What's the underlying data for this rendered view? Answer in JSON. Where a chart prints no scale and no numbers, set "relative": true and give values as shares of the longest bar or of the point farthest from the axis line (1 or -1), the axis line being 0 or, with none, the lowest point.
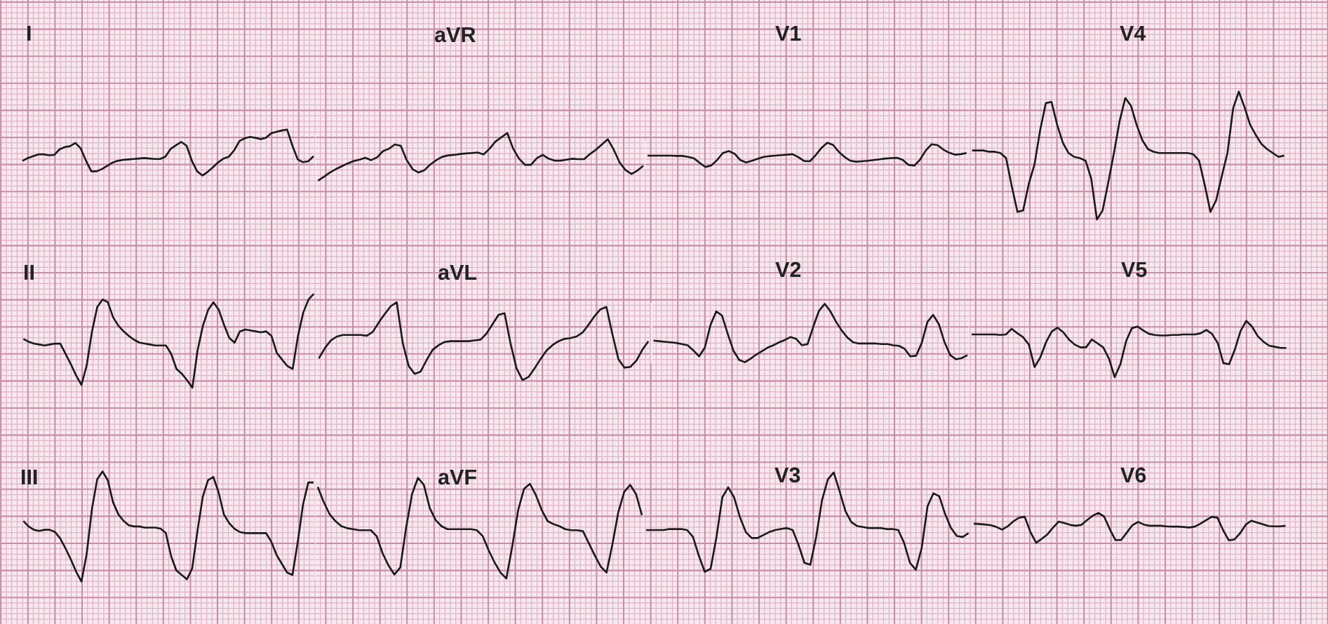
{
  "chart_data": [
    {
      "type": "line",
      "title": "I",
      "relative": true,
      "grid": true,
      "color": "#1a1a1a",
      "categories": [
        null,
        null,
        null,
        null,
        null,
        null,
        null,
        null,
        null,
        null,
        null,
        null,
        null,
        null,
        null,
        null,
        null,
        null,
        null,
        null,
        null,
        null,
        null,
        null,
        null,
        null,
        null,
        null,
        null,
        null,
        null,
        null,
        null,
        null,
        null,
        null,
        null,
        null,
        null,
        null,
        null,
        null,
        null,
        null,
        null,
        null,
        null,
        null,
        null,
        null,
        null,
        null,
        null,
        null,
        null,
        null
      ],
      "values": [
        0.32,
        0.38,
        0.42,
        0.46,
        0.46,
        0.44,
        0.45,
        0.57,
        0.62,
        0.64,
        0.71,
        0.59,
        0.32,
        0.09,
        0.09,
        0.14,
        0.21,
        0.28,
        0.32,
        0.34,
        0.35,
        0.36,
        0.37,
        0.38,
        0.37,
        0.36,
        0.36,
        0.41,
        0.58,
        0.66,
        0.73,
        0.65,
        0.32,
        0.09,
        0,
        0.08,
        0.18,
        0.29,
        0.37,
        0.41,
        0.55,
        0.75,
        0.81,
        0.84,
        0.82,
        0.79,
        0.82,
        0.92,
        0.95,
        0.98,
        1,
        0.65,
        0.35,
        0.29,
        0.31,
        0.42
      ]
    },
    {
      "type": "line",
      "title": "aVR",
      "relative": true,
      "grid": true,
      "color": "#1a1a1a",
      "categories": [
        null,
        null,
        null,
        null,
        null,
        null,
        null,
        null,
        null,
        null,
        null,
        null,
        null,
        null,
        null,
        null,
        null,
        null,
        null,
        null,
        null,
        null,
        null,
        null,
        null,
        null,
        null,
        null,
        null,
        null,
        null,
        null,
        null,
        null,
        null,
        null,
        null,
        null,
        null,
        null,
        null,
        null,
        null,
        null,
        null,
        null,
        null,
        null,
        null,
        null,
        null,
        null,
        null,
        null,
        null,
        null
      ],
      "values": [
        0,
        0.08,
        0.17,
        0.24,
        0.3,
        0.36,
        0.41,
        0.44,
        0.48,
        0.43,
        0.49,
        0.62,
        0.67,
        0.76,
        0.73,
        0.43,
        0.24,
        0.17,
        0.22,
        0.34,
        0.43,
        0.5,
        0.53,
        0.54,
        0.56,
        0.57,
        0.58,
        0.59,
        0.55,
        0.67,
        0.82,
        0.91,
        1,
        0.67,
        0.46,
        0.33,
        0.33,
        0.47,
        0.54,
        0.46,
        0.42,
        0.42,
        0.44,
        0.46,
        0.45,
        0.45,
        0.56,
        0.65,
        0.76,
        0.87,
        0.65,
        0.38,
        0.22,
        0.14,
        0.21,
        0.31
      ]
    },
    {
      "type": "line",
      "title": "V1",
      "relative": true,
      "grid": true,
      "color": "#1a1a1a",
      "categories": [
        null,
        null,
        null,
        null,
        null,
        null,
        null,
        null,
        null,
        null,
        null,
        null,
        null,
        null,
        null,
        null,
        null,
        null,
        null,
        null,
        null,
        null,
        null,
        null,
        null,
        null,
        null,
        null,
        null,
        null,
        null,
        null,
        null,
        null,
        null,
        null,
        null,
        null,
        null,
        null,
        null,
        null,
        null,
        null,
        null,
        null,
        null,
        null,
        null,
        null,
        null,
        null,
        null,
        null,
        null,
        null
      ],
      "values": [
        0.47,
        0.47,
        0.47,
        0.47,
        0.47,
        0.46,
        0.46,
        0.42,
        0.36,
        0.17,
        0,
        0.07,
        0.29,
        0.58,
        0.66,
        0.55,
        0.29,
        0.19,
        0.26,
        0.34,
        0.42,
        0.45,
        0.47,
        0.49,
        0.51,
        0.53,
        0.41,
        0.25,
        0.24,
        0.49,
        0.79,
        1,
        0.91,
        0.62,
        0.41,
        0.26,
        0.22,
        0.24,
        0.26,
        0.29,
        0.32,
        0.35,
        0.37,
        0.38,
        0.3,
        0.09,
        0.06,
        0.31,
        0.69,
        0.94,
        0.9,
        0.72,
        0.59,
        0.51,
        0.53,
        0.58
      ]
    },
    {
      "type": "line",
      "title": "V4",
      "relative": true,
      "grid": true,
      "color": "#1a1a1a",
      "categories": [
        null,
        null,
        null,
        null,
        null,
        null,
        null,
        null,
        null,
        null,
        null,
        null,
        null,
        null,
        null,
        null,
        null,
        null,
        null,
        null,
        null,
        null,
        null,
        null,
        null,
        null,
        null,
        null,
        null,
        null,
        null,
        null,
        null,
        null,
        null,
        null,
        null,
        null,
        null,
        null,
        null,
        null,
        null,
        null,
        null,
        null,
        null,
        null,
        null,
        null,
        null,
        null,
        null,
        null,
        null,
        null
      ],
      "values": [
        0.54,
        0.54,
        0.54,
        0.53,
        0.53,
        0.52,
        0.48,
        0.26,
        0.06,
        0.07,
        0.28,
        0.43,
        0.7,
        0.91,
        0.92,
        0.74,
        0.6,
        0.52,
        0.49,
        0.48,
        0.46,
        0.32,
        0,
        0.07,
        0.29,
        0.52,
        0.77,
        0.95,
        0.89,
        0.74,
        0.62,
        0.55,
        0.53,
        0.52,
        0.52,
        0.52,
        0.52,
        0.52,
        0.52,
        0.51,
        0.46,
        0.27,
        0.06,
        0.15,
        0.34,
        0.52,
        0.87,
        1,
        0.88,
        0.74,
        0.66,
        0.59,
        0.55,
        0.52,
        0.49,
        0.5
      ]
    },
    {
      "type": "line",
      "title": "II",
      "relative": true,
      "grid": true,
      "color": "#1a1a1a",
      "categories": [
        null,
        null,
        null,
        null,
        null,
        null,
        null,
        null,
        null,
        null,
        null,
        null,
        null,
        null,
        null,
        null,
        null,
        null,
        null,
        null,
        null,
        null,
        null,
        null,
        null,
        null,
        null,
        null,
        null,
        null,
        null,
        null,
        null,
        null,
        null,
        null,
        null,
        null,
        null,
        null,
        null,
        null,
        null,
        null,
        null,
        null,
        null,
        null,
        null,
        null,
        null,
        null,
        null,
        null,
        null,
        null
      ],
      "values": [
        0.52,
        0.49,
        0.47,
        0.46,
        0.45,
        0.46,
        0.47,
        0.47,
        0.36,
        0.25,
        0.13,
        0.03,
        0.24,
        0.6,
        0.86,
        0.94,
        0.91,
        0.75,
        0.66,
        0.6,
        0.55,
        0.51,
        0.48,
        0.47,
        0.46,
        0.45,
        0.45,
        0.45,
        0.36,
        0.2,
        0.15,
        0.08,
        0,
        0.4,
        0.66,
        0.83,
        0.91,
        0.83,
        0.67,
        0.53,
        0.48,
        0.6,
        0.62,
        0.61,
        0.6,
        0.59,
        0.6,
        0.55,
        0.37,
        0.3,
        0.23,
        0.2,
        0.55,
        0.8,
        0.94,
        1
      ]
    },
    {
      "type": "line",
      "title": "aVL",
      "relative": true,
      "grid": true,
      "color": "#1a1a1a",
      "categories": [
        null,
        null,
        null,
        null,
        null,
        null,
        null,
        null,
        null,
        null,
        null,
        null,
        null,
        null,
        null,
        null,
        null,
        null,
        null,
        null,
        null,
        null,
        null,
        null,
        null,
        null,
        null,
        null,
        null,
        null,
        null,
        null,
        null,
        null,
        null,
        null,
        null,
        null,
        null,
        null,
        null,
        null,
        null,
        null,
        null,
        null,
        null,
        null,
        null,
        null,
        null,
        null,
        null,
        null,
        null,
        null
      ],
      "values": [
        0.28,
        0.41,
        0.51,
        0.56,
        0.58,
        0.58,
        0.58,
        0.58,
        0.57,
        0.62,
        0.74,
        0.85,
        0.95,
        1,
        0.48,
        0.18,
        0.08,
        0.11,
        0.26,
        0.39,
        0.45,
        0.49,
        0.5,
        0.5,
        0.5,
        0.5,
        0.51,
        0.52,
        0.6,
        0.72,
        0.84,
        0.86,
        0.47,
        0.15,
        0,
        0.04,
        0.15,
        0.27,
        0.38,
        0.45,
        0.5,
        0.53,
        0.54,
        0.56,
        0.61,
        0.71,
        0.82,
        0.91,
        0.94,
        0.59,
        0.27,
        0.16,
        0.17,
        0.25,
        0.39,
        0.5
      ]
    },
    {
      "type": "line",
      "title": "V2",
      "relative": true,
      "grid": true,
      "color": "#1a1a1a",
      "categories": [
        null,
        null,
        null,
        null,
        null,
        null,
        null,
        null,
        null,
        null,
        null,
        null,
        null,
        null,
        null,
        null,
        null,
        null,
        null,
        null,
        null,
        null,
        null,
        null,
        null,
        null,
        null,
        null,
        null,
        null,
        null,
        null,
        null,
        null,
        null,
        null,
        null,
        null,
        null,
        null,
        null,
        null,
        null,
        null,
        null,
        null,
        null,
        null,
        null,
        null,
        null,
        null,
        null,
        null,
        null,
        null
      ],
      "values": [
        0.37,
        0.36,
        0.35,
        0.34,
        0.33,
        0.31,
        0.29,
        0.2,
        0.1,
        0.25,
        0.64,
        0.87,
        0.8,
        0.49,
        0.2,
        0.04,
        0,
        0.06,
        0.13,
        0.19,
        0.25,
        0.29,
        0.34,
        0.38,
        0.43,
        0.4,
        0.29,
        0.31,
        0.61,
        0.88,
        1,
        0.87,
        0.69,
        0.54,
        0.42,
        0.34,
        0.32,
        0.32,
        0.32,
        0.32,
        0.31,
        0.31,
        0.29,
        0.28,
        0.23,
        0.1,
        0.11,
        0.33,
        0.69,
        0.81,
        0.65,
        0.34,
        0.12,
        0.05,
        0.07,
        0.12
      ]
    },
    {
      "type": "line",
      "title": "V5",
      "relative": true,
      "grid": true,
      "color": "#1a1a1a",
      "categories": [
        null,
        null,
        null,
        null,
        null,
        null,
        null,
        null,
        null,
        null,
        null,
        null,
        null,
        null,
        null,
        null,
        null,
        null,
        null,
        null,
        null,
        null,
        null,
        null,
        null,
        null,
        null,
        null,
        null,
        null,
        null,
        null,
        null,
        null,
        null,
        null,
        null,
        null,
        null,
        null,
        null,
        null,
        null,
        null,
        null,
        null,
        null,
        null,
        null,
        null,
        null,
        null,
        null,
        null,
        null,
        null
      ],
      "values": [
        0.76,
        0.76,
        0.76,
        0.76,
        0.76,
        0.75,
        0.76,
        0.86,
        0.78,
        0.71,
        0.58,
        0.18,
        0.35,
        0.62,
        0.81,
        0.88,
        0.8,
        0.67,
        0.58,
        0.53,
        0.53,
        0.67,
        0.6,
        0.53,
        0.33,
        0,
        0.23,
        0.64,
        0.87,
        0.9,
        0.83,
        0.77,
        0.75,
        0.74,
        0.74,
        0.75,
        0.75,
        0.76,
        0.76,
        0.76,
        0.78,
        0.84,
        0.77,
        0.61,
        0.25,
        0.23,
        0.49,
        0.82,
        1,
        0.9,
        0.73,
        0.63,
        0.56,
        0.54,
        0.52,
        0.52
      ]
    },
    {
      "type": "line",
      "title": "III",
      "relative": true,
      "grid": true,
      "color": "#1a1a1a",
      "categories": [
        null,
        null,
        null,
        null,
        null,
        null,
        null,
        null,
        null,
        null,
        null,
        null,
        null,
        null,
        null,
        null,
        null,
        null,
        null,
        null,
        null,
        null,
        null,
        null,
        null,
        null,
        null,
        null,
        null,
        null,
        null,
        null,
        null,
        null,
        null,
        null,
        null,
        null,
        null,
        null,
        null,
        null,
        null,
        null,
        null,
        null,
        null,
        null,
        null,
        null,
        null,
        null,
        null,
        null,
        null,
        null
      ],
      "values": [
        0.55,
        0.5,
        0.47,
        0.46,
        0.47,
        0.47,
        0.45,
        0.39,
        0.3,
        0.2,
        0.09,
        0,
        0.25,
        0.66,
        0.93,
        1,
        0.92,
        0.72,
        0.61,
        0.55,
        0.51,
        0.5,
        0.5,
        0.49,
        0.49,
        0.49,
        0.48,
        0.44,
        0.23,
        0.1,
        0.06,
        0.02,
        0.12,
        0.46,
        0.77,
        0.92,
        0.95,
        0.81,
        0.61,
        0.53,
        0.48,
        0.45,
        0.44,
        0.44,
        0.44,
        0.44,
        0.44,
        0.36,
        0.24,
        0.16,
        0.08,
        0.06,
        0.36,
        0.7,
        0.9,
        0.9
      ]
    },
    {
      "type": "line",
      "title": "aVF",
      "relative": true,
      "grid": true,
      "color": "#1a1a1a",
      "categories": [
        null,
        null,
        null,
        null,
        null,
        null,
        null,
        null,
        null,
        null,
        null,
        null,
        null,
        null,
        null,
        null,
        null,
        null,
        null,
        null,
        null,
        null,
        null,
        null,
        null,
        null,
        null,
        null,
        null,
        null,
        null,
        null,
        null,
        null,
        null,
        null,
        null,
        null,
        null,
        null,
        null,
        null,
        null,
        null,
        null,
        null,
        null,
        null,
        null,
        null,
        null,
        null,
        null,
        null,
        null,
        null
      ],
      "values": [
        0.91,
        0.76,
        0.64,
        0.57,
        0.52,
        0.5,
        0.49,
        0.48,
        0.48,
        0.48,
        0.42,
        0.25,
        0.13,
        0.04,
        0.11,
        0.51,
        0.84,
        1,
        0.93,
        0.7,
        0.58,
        0.52,
        0.49,
        0.49,
        0.49,
        0.49,
        0.49,
        0.48,
        0.42,
        0.28,
        0.16,
        0.06,
        0,
        0.32,
        0.68,
        0.89,
        0.94,
        0.83,
        0.68,
        0.57,
        0.54,
        0.52,
        0.49,
        0.48,
        0.48,
        0.47,
        0.35,
        0.23,
        0.12,
        0.06,
        0.34,
        0.66,
        0.86,
        0.93,
        0.84,
        0.63
      ]
    },
    {
      "type": "line",
      "title": "V3",
      "relative": true,
      "grid": true,
      "color": "#1a1a1a",
      "categories": [
        null,
        null,
        null,
        null,
        null,
        null,
        null,
        null,
        null,
        null,
        null,
        null,
        null,
        null,
        null,
        null,
        null,
        null,
        null,
        null,
        null,
        null,
        null,
        null,
        null,
        null,
        null,
        null,
        null,
        null,
        null,
        null,
        null,
        null,
        null,
        null,
        null,
        null,
        null,
        null,
        null,
        null,
        null,
        null,
        null,
        null,
        null,
        null,
        null,
        null,
        null,
        null,
        null,
        null,
        null,
        null
      ],
      "values": [
        0.42,
        0.42,
        0.42,
        0.42,
        0.43,
        0.43,
        0.43,
        0.42,
        0.35,
        0.16,
        0,
        0.03,
        0.35,
        0.75,
        0.85,
        0.75,
        0.55,
        0.4,
        0.34,
        0.34,
        0.37,
        0.4,
        0.42,
        0.43,
        0.44,
        0.42,
        0.27,
        0.09,
        0.07,
        0.35,
        0.72,
        0.93,
        1,
        0.81,
        0.61,
        0.5,
        0.46,
        0.45,
        0.44,
        0.44,
        0.44,
        0.43,
        0.43,
        0.42,
        0.29,
        0.09,
        0.02,
        0.24,
        0.66,
        0.79,
        0.76,
        0.58,
        0.44,
        0.36,
        0.35,
        0.39
      ]
    },
    {
      "type": "line",
      "title": "V6",
      "relative": true,
      "grid": true,
      "color": "#1a1a1a",
      "categories": [
        null,
        null,
        null,
        null,
        null,
        null,
        null,
        null,
        null,
        null,
        null,
        null,
        null,
        null,
        null,
        null,
        null,
        null,
        null,
        null,
        null,
        null,
        null,
        null,
        null,
        null,
        null,
        null,
        null,
        null,
        null,
        null,
        null,
        null,
        null,
        null,
        null,
        null,
        null,
        null,
        null,
        null,
        null,
        null,
        null,
        null,
        null,
        null,
        null,
        null,
        null,
        null,
        null,
        null,
        null,
        null
      ],
      "values": [
        0.64,
        0.63,
        0.61,
        0.59,
        0.53,
        0.44,
        0.55,
        0.72,
        0.84,
        0.87,
        0.36,
        0,
        0.13,
        0.28,
        0.51,
        0.71,
        0.66,
        0.6,
        0.57,
        0.6,
        0.76,
        0.91,
        1,
        0.88,
        0.46,
        0.09,
        0.09,
        0.34,
        0.59,
        0.7,
        0.61,
        0.57,
        0.57,
        0.57,
        0.55,
        0.54,
        0.54,
        0.53,
        0.51,
        0.54,
        0.64,
        0.76,
        0.87,
        0.84,
        0.42,
        0.08,
        0.11,
        0.32,
        0.61,
        0.74,
        0.68,
        0.62,
        0.56,
        0.55,
        0.55,
        0.57
      ]
    }
  ]
}
